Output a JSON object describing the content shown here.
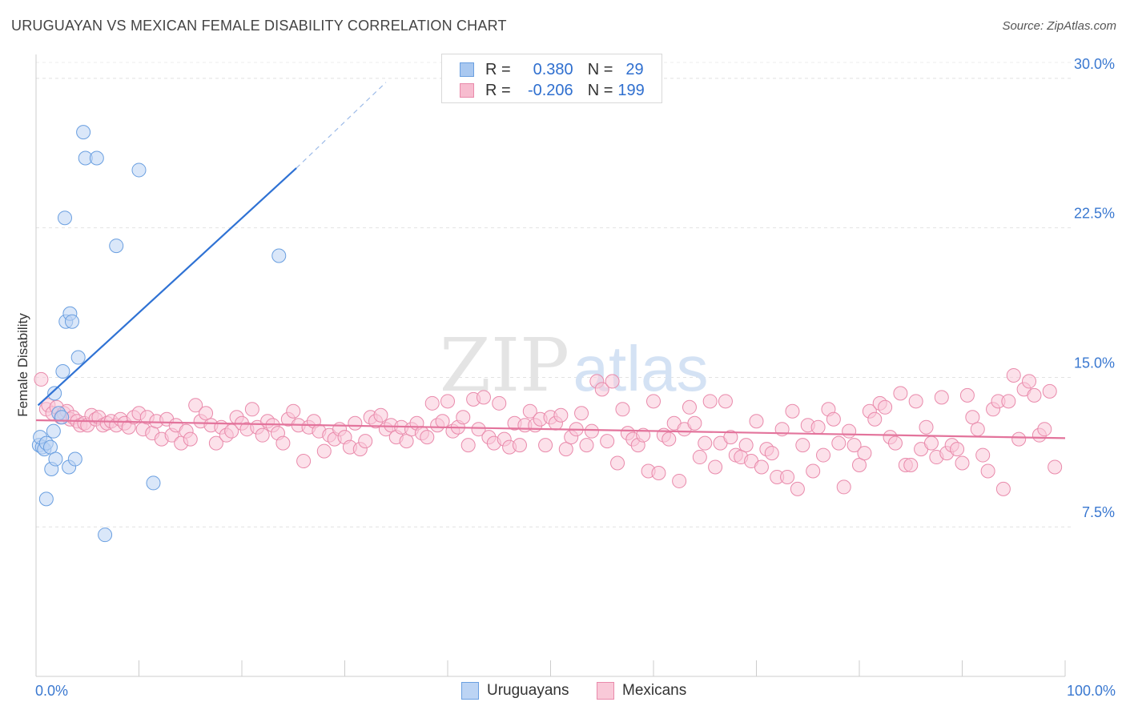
{
  "header": {
    "title": "URUGUAYAN VS MEXICAN FEMALE DISABILITY CORRELATION CHART",
    "source": "Source: ZipAtlas.com"
  },
  "watermark": {
    "zip": "ZIP",
    "atlas": "atlas"
  },
  "legend": {
    "rows": [
      {
        "r_label": "R =",
        "r_value": "0.380",
        "n_label": "N =",
        "n_value": "29",
        "color": "#a9c8f0",
        "border": "#6a9fe0"
      },
      {
        "r_label": "R =",
        "r_value": "-0.206",
        "n_label": "N =",
        "n_value": "199",
        "color": "#f7bccf",
        "border": "#e98aab"
      }
    ]
  },
  "bottom_legend": [
    {
      "label": "Uruguayans",
      "color": "#bcd4f4",
      "border": "#6a9fe0"
    },
    {
      "label": "Mexicans",
      "color": "#f9c9d8",
      "border": "#e98aab"
    }
  ],
  "chart_data": {
    "type": "scatter",
    "title": "URUGUAYAN VS MEXICAN FEMALE DISABILITY CORRELATION CHART",
    "xlabel": "",
    "ylabel": "Female Disability",
    "xlim": [
      0,
      100
    ],
    "ylim": [
      0,
      31.2
    ],
    "x_tick_labels": [
      "0.0%",
      "100.0%"
    ],
    "y_ticks": [
      7.5,
      15.0,
      22.5,
      30.0
    ],
    "y_tick_labels": [
      "7.5%",
      "15.0%",
      "22.5%",
      "30.0%"
    ],
    "grid": true,
    "legend_placement": "top-center",
    "series": [
      {
        "name": "Uruguayans",
        "color": "#6a9fe0",
        "fill": "#bcd4f4",
        "points": [
          [
            0.3,
            11.6
          ],
          [
            0.6,
            11.5
          ],
          [
            0.8,
            11.4
          ],
          [
            0.4,
            12.0
          ],
          [
            1.0,
            11.7
          ],
          [
            1.4,
            11.5
          ],
          [
            1.0,
            8.9
          ],
          [
            1.5,
            10.4
          ],
          [
            1.9,
            10.9
          ],
          [
            2.2,
            13.2
          ],
          [
            1.7,
            12.3
          ],
          [
            1.8,
            14.2
          ],
          [
            2.6,
            15.3
          ],
          [
            2.8,
            23.0
          ],
          [
            2.9,
            17.8
          ],
          [
            3.3,
            18.2
          ],
          [
            3.5,
            17.8
          ],
          [
            3.2,
            10.5
          ],
          [
            3.8,
            10.9
          ],
          [
            4.1,
            16.0
          ],
          [
            4.6,
            27.3
          ],
          [
            4.8,
            26.0
          ],
          [
            5.9,
            26.0
          ],
          [
            6.7,
            7.1
          ],
          [
            7.8,
            21.6
          ],
          [
            10.0,
            25.4
          ],
          [
            11.4,
            9.7
          ],
          [
            23.6,
            21.1
          ],
          [
            2.5,
            13.0
          ]
        ],
        "trend": {
          "x0": 0.2,
          "y0": 13.6,
          "x1": 25.3,
          "y1": 25.5,
          "dash_to_x": 34.0,
          "dash_to_y": 29.8
        }
      },
      {
        "name": "Mexicans",
        "color": "#e98aab",
        "fill": "#f9c9d8",
        "points": [
          [
            0.5,
            14.9
          ],
          [
            1.0,
            13.4
          ],
          [
            1.2,
            13.6
          ],
          [
            1.6,
            13.2
          ],
          [
            2.0,
            13.5
          ],
          [
            2.4,
            13.0
          ],
          [
            2.7,
            13.2
          ],
          [
            3.0,
            13.3
          ],
          [
            3.3,
            12.9
          ],
          [
            3.6,
            13.0
          ],
          [
            4.0,
            12.8
          ],
          [
            4.3,
            12.6
          ],
          [
            4.7,
            12.7
          ],
          [
            5.0,
            12.6
          ],
          [
            5.4,
            13.1
          ],
          [
            5.8,
            12.9
          ],
          [
            6.1,
            13.0
          ],
          [
            6.5,
            12.6
          ],
          [
            6.9,
            12.7
          ],
          [
            7.3,
            12.8
          ],
          [
            7.8,
            12.6
          ],
          [
            8.2,
            12.9
          ],
          [
            8.6,
            12.7
          ],
          [
            9.0,
            12.5
          ],
          [
            9.5,
            13.0
          ],
          [
            10.0,
            13.2
          ],
          [
            10.4,
            12.4
          ],
          [
            10.8,
            13.0
          ],
          [
            11.3,
            12.2
          ],
          [
            11.7,
            12.8
          ],
          [
            12.2,
            11.9
          ],
          [
            12.7,
            12.9
          ],
          [
            13.2,
            12.1
          ],
          [
            13.6,
            12.6
          ],
          [
            14.1,
            11.7
          ],
          [
            14.6,
            12.3
          ],
          [
            15.0,
            11.9
          ],
          [
            15.5,
            13.6
          ],
          [
            16.0,
            12.8
          ],
          [
            16.5,
            13.2
          ],
          [
            17.0,
            12.6
          ],
          [
            17.5,
            11.7
          ],
          [
            18.0,
            12.5
          ],
          [
            18.5,
            12.1
          ],
          [
            19.0,
            12.3
          ],
          [
            19.5,
            13.0
          ],
          [
            20.0,
            12.7
          ],
          [
            20.5,
            12.4
          ],
          [
            21.0,
            13.4
          ],
          [
            21.5,
            12.5
          ],
          [
            22.0,
            12.1
          ],
          [
            22.5,
            12.8
          ],
          [
            23.0,
            12.6
          ],
          [
            23.5,
            12.2
          ],
          [
            24.0,
            11.7
          ],
          [
            24.5,
            12.9
          ],
          [
            25.0,
            13.3
          ],
          [
            25.5,
            12.6
          ],
          [
            26.0,
            10.8
          ],
          [
            26.5,
            12.5
          ],
          [
            27.0,
            12.8
          ],
          [
            27.5,
            12.3
          ],
          [
            28.0,
            11.3
          ],
          [
            28.5,
            12.1
          ],
          [
            29.0,
            11.9
          ],
          [
            29.5,
            12.4
          ],
          [
            30.0,
            12.0
          ],
          [
            30.5,
            11.5
          ],
          [
            31.0,
            12.7
          ],
          [
            31.5,
            11.4
          ],
          [
            32.0,
            11.8
          ],
          [
            32.5,
            13.0
          ],
          [
            33.0,
            12.8
          ],
          [
            33.5,
            13.1
          ],
          [
            34.0,
            12.4
          ],
          [
            34.5,
            12.6
          ],
          [
            35.0,
            12.0
          ],
          [
            35.5,
            12.5
          ],
          [
            36.0,
            11.8
          ],
          [
            36.5,
            12.4
          ],
          [
            37.0,
            12.7
          ],
          [
            37.5,
            12.2
          ],
          [
            38.0,
            12.0
          ],
          [
            38.5,
            13.7
          ],
          [
            39.0,
            12.6
          ],
          [
            39.5,
            12.8
          ],
          [
            40.0,
            13.8
          ],
          [
            40.5,
            12.3
          ],
          [
            41.0,
            12.5
          ],
          [
            41.5,
            13.0
          ],
          [
            42.0,
            11.6
          ],
          [
            42.5,
            13.9
          ],
          [
            43.0,
            12.4
          ],
          [
            43.5,
            14.0
          ],
          [
            44.0,
            12.0
          ],
          [
            44.5,
            11.7
          ],
          [
            45.0,
            13.7
          ],
          [
            45.5,
            11.9
          ],
          [
            46.0,
            11.5
          ],
          [
            46.5,
            12.7
          ],
          [
            47.0,
            11.6
          ],
          [
            47.5,
            12.6
          ],
          [
            48.0,
            13.3
          ],
          [
            48.5,
            12.6
          ],
          [
            49.0,
            12.9
          ],
          [
            49.5,
            11.6
          ],
          [
            50.0,
            13.0
          ],
          [
            50.5,
            12.7
          ],
          [
            51.0,
            13.1
          ],
          [
            51.5,
            11.4
          ],
          [
            52.0,
            12.0
          ],
          [
            52.5,
            12.4
          ],
          [
            53.0,
            13.2
          ],
          [
            53.5,
            11.6
          ],
          [
            54.0,
            12.3
          ],
          [
            54.5,
            14.8
          ],
          [
            55.0,
            14.4
          ],
          [
            55.5,
            11.8
          ],
          [
            56.0,
            14.8
          ],
          [
            56.5,
            10.7
          ],
          [
            57.0,
            13.4
          ],
          [
            57.5,
            12.2
          ],
          [
            58.0,
            11.9
          ],
          [
            58.5,
            11.6
          ],
          [
            59.0,
            12.1
          ],
          [
            59.5,
            10.3
          ],
          [
            60.0,
            13.8
          ],
          [
            60.5,
            10.2
          ],
          [
            61.0,
            12.1
          ],
          [
            61.5,
            11.9
          ],
          [
            62.0,
            12.7
          ],
          [
            62.5,
            9.8
          ],
          [
            63.0,
            12.4
          ],
          [
            63.5,
            13.5
          ],
          [
            64.0,
            12.7
          ],
          [
            64.5,
            11.0
          ],
          [
            65.0,
            11.7
          ],
          [
            65.5,
            13.8
          ],
          [
            66.0,
            10.5
          ],
          [
            66.5,
            11.7
          ],
          [
            67.0,
            13.8
          ],
          [
            67.5,
            12.0
          ],
          [
            68.0,
            11.1
          ],
          [
            68.5,
            11.0
          ],
          [
            69.0,
            11.6
          ],
          [
            69.5,
            10.8
          ],
          [
            70.0,
            12.8
          ],
          [
            70.5,
            10.5
          ],
          [
            71.0,
            11.4
          ],
          [
            71.5,
            11.2
          ],
          [
            72.0,
            10.0
          ],
          [
            72.5,
            12.4
          ],
          [
            73.0,
            10.0
          ],
          [
            73.5,
            13.3
          ],
          [
            74.0,
            9.4
          ],
          [
            74.5,
            11.6
          ],
          [
            75.0,
            12.6
          ],
          [
            75.5,
            10.3
          ],
          [
            76.0,
            12.5
          ],
          [
            76.5,
            11.1
          ],
          [
            77.0,
            13.4
          ],
          [
            77.5,
            12.9
          ],
          [
            78.0,
            11.7
          ],
          [
            78.5,
            9.5
          ],
          [
            79.0,
            12.3
          ],
          [
            79.5,
            11.6
          ],
          [
            80.0,
            10.6
          ],
          [
            80.5,
            11.2
          ],
          [
            81.0,
            13.3
          ],
          [
            81.5,
            12.9
          ],
          [
            82.0,
            13.7
          ],
          [
            82.5,
            13.5
          ],
          [
            83.0,
            12.0
          ],
          [
            83.5,
            11.7
          ],
          [
            84.0,
            14.2
          ],
          [
            84.5,
            10.6
          ],
          [
            85.0,
            10.6
          ],
          [
            85.5,
            13.8
          ],
          [
            86.0,
            11.4
          ],
          [
            86.5,
            12.5
          ],
          [
            87.0,
            11.7
          ],
          [
            87.5,
            11.0
          ],
          [
            88.0,
            14.0
          ],
          [
            88.5,
            11.2
          ],
          [
            89.0,
            11.6
          ],
          [
            89.5,
            11.4
          ],
          [
            90.0,
            10.7
          ],
          [
            90.5,
            14.1
          ],
          [
            91.0,
            13.0
          ],
          [
            91.5,
            12.4
          ],
          [
            92.0,
            11.1
          ],
          [
            92.5,
            10.3
          ],
          [
            93.0,
            13.4
          ],
          [
            93.5,
            13.8
          ],
          [
            94.0,
            9.4
          ],
          [
            94.5,
            13.8
          ],
          [
            95.0,
            15.1
          ],
          [
            95.5,
            11.9
          ],
          [
            96.0,
            14.4
          ],
          [
            96.5,
            14.8
          ],
          [
            97.0,
            14.1
          ],
          [
            97.5,
            12.1
          ],
          [
            98.0,
            12.4
          ],
          [
            98.5,
            14.3
          ],
          [
            99.0,
            10.5
          ]
        ],
        "trend": {
          "x0": 0.0,
          "y0": 12.85,
          "x1": 100.0,
          "y1": 11.95
        }
      }
    ]
  }
}
